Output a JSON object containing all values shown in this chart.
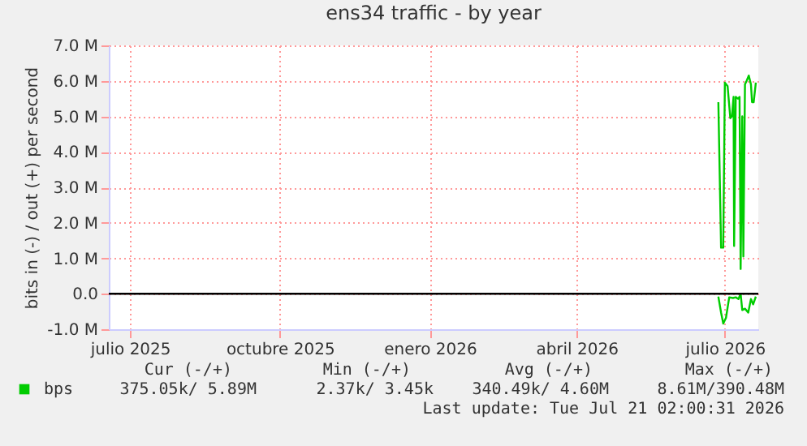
{
  "chart_data": {
    "type": "line",
    "title": "ens34 traffic - by year",
    "ylabel": "bits in (-) / out (+) per second",
    "xlim": [
      "2025-06-18",
      "2026-07-21T12:00"
    ],
    "ylim": [
      -1,
      7
    ],
    "xticks": [
      {
        "value": "2025-07-01",
        "label": "julio 2025"
      },
      {
        "value": "2025-10-01",
        "label": "octubre 2025"
      },
      {
        "value": "2026-01-01",
        "label": "enero 2026"
      },
      {
        "value": "2026-04-01",
        "label": "abril 2026"
      },
      {
        "value": "2026-07-01",
        "label": "julio 2026"
      }
    ],
    "yticks": [
      {
        "value": -1,
        "label": "-1.0 M"
      },
      {
        "value": 0,
        "label": "0.0"
      },
      {
        "value": 1,
        "label": "1.0 M"
      },
      {
        "value": 2,
        "label": "2.0 M"
      },
      {
        "value": 3,
        "label": "3.0 M"
      },
      {
        "value": 4,
        "label": "4.0 M"
      },
      {
        "value": 5,
        "label": "5.0 M"
      },
      {
        "value": 6,
        "label": "6.0 M"
      },
      {
        "value": 7,
        "label": "7.0 M"
      }
    ],
    "series": [
      {
        "name": "bps",
        "color": "#00cc00",
        "x": [
          "2026-06-27T00:00",
          "2026-06-28T16:00",
          "2026-06-30T00:00",
          "2026-07-01T00:00",
          "2026-07-02T16:00",
          "2026-07-04T08:00",
          "2026-07-05T08:00",
          "2026-07-06T08:00",
          "2026-07-06T16:00",
          "2026-07-07T16:00",
          "2026-07-09T00:00",
          "2026-07-10T00:00",
          "2026-07-10T16:00",
          "2026-07-11T16:00",
          "2026-07-12T08:00",
          "2026-07-13T08:00",
          "2026-07-14T08:00",
          "2026-07-15T16:00",
          "2026-07-17T00:00",
          "2026-07-17T16:00",
          "2026-07-18T16:00",
          "2026-07-20T00:00"
        ],
        "values": [
          5.4,
          1.3,
          1.3,
          5.95,
          5.85,
          4.95,
          5.0,
          5.55,
          1.35,
          5.55,
          5.5,
          5.55,
          0.7,
          5.0,
          1.05,
          5.9,
          6.0,
          6.15,
          5.9,
          5.4,
          5.4,
          5.95
        ]
      },
      {
        "color": "#00cc00",
        "x": [
          "2026-06-27T00:00",
          "2026-06-28T16:00",
          "2026-06-30T00:00",
          "2026-07-01T16:00",
          "2026-07-03T16:00",
          "2026-07-06T00:00",
          "2026-07-07T16:00",
          "2026-07-09T08:00",
          "2026-07-10T16:00",
          "2026-07-11T16:00",
          "2026-07-13T08:00",
          "2026-07-15T08:00",
          "2026-07-17T00:00",
          "2026-07-18T08:00",
          "2026-07-20T00:00"
        ],
        "values": [
          -0.08,
          -0.53,
          -0.84,
          -0.68,
          -0.1,
          -0.12,
          -0.1,
          -0.15,
          0.0,
          -0.46,
          -0.42,
          -0.53,
          -0.15,
          -0.3,
          -0.08
        ]
      }
    ],
    "ref_lines": [
      {
        "axis": "y",
        "value": 0,
        "color": "#000000"
      }
    ],
    "grid": true,
    "legend": "bottom left",
    "annotations": [
      "Cur (-/+)",
      "Min (-/+)",
      "Avg (-/+)",
      "Max (-/+)",
      "375.05k/   5.89M",
      "2.37k/   3.45k",
      "340.49k/   4.60M",
      "8.61M/390.48M",
      "Last update: Tue Jul 21 02:00:31 2026"
    ]
  }
}
